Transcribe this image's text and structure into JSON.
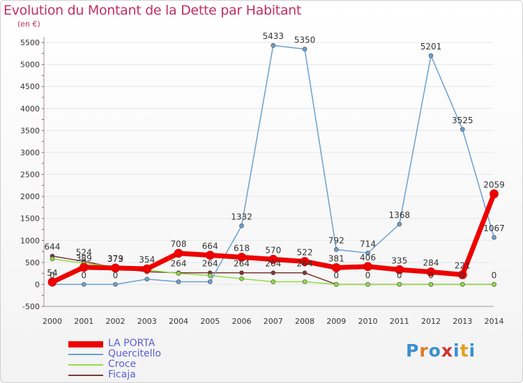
{
  "title": "Evolution du Montant de la Dette par Habitant",
  "unit": "(en €)",
  "logo": {
    "letters": [
      "P",
      "r",
      "o",
      "x",
      "i",
      "t",
      "i"
    ],
    "colors": [
      "#3a8fd0",
      "#e07a1f",
      "#3a8fd0",
      "#d03030",
      "#3a8fd0",
      "#e0a020",
      "#3a8fd0"
    ]
  },
  "chart_data": {
    "type": "line",
    "categories": [
      "2000",
      "2001",
      "2002",
      "2003",
      "2004",
      "2005",
      "2006",
      "2007",
      "2008",
      "2009",
      "2010",
      "2011",
      "2012",
      "2013",
      "2014"
    ],
    "ylim": [
      -500,
      5500
    ],
    "yticks": [
      -500,
      0,
      500,
      1000,
      1500,
      2000,
      2500,
      3000,
      3500,
      4000,
      4500,
      5000,
      5500
    ],
    "grid": true,
    "legend_placement": "bottom-left",
    "series": [
      {
        "name": "LA PORTA",
        "color": "#ee0000",
        "values": [
          54,
          389,
          373,
          354,
          708,
          664,
          618,
          570,
          522,
          381,
          406,
          335,
          284,
          221,
          2059
        ],
        "labels": [
          "54",
          "389",
          "373",
          "354",
          "708",
          "664",
          "618",
          "570",
          "522",
          "381",
          "406",
          "335",
          "284",
          "221",
          "2059"
        ]
      },
      {
        "name": "Quercitello",
        "color": "#6aa0d0",
        "values": [
          0,
          0,
          0,
          120,
          60,
          60,
          1332,
          5433,
          5350,
          792,
          714,
          1368,
          5201,
          3525,
          1067
        ],
        "labels": [
          "0",
          "0",
          "0",
          "",
          "",
          "",
          "1332",
          "5433",
          "5350",
          "792",
          "714",
          "1368",
          "5201",
          "3525",
          "1067"
        ]
      },
      {
        "name": "Croce",
        "color": "#90dd40",
        "values": [
          580,
          480,
          400,
          330,
          250,
          200,
          130,
          60,
          60,
          0,
          0,
          0,
          0,
          0,
          0
        ],
        "labels": [
          "",
          "",
          "",
          "",
          "",
          "",
          "",
          "",
          "",
          "",
          "",
          "",
          "",
          "",
          ""
        ]
      },
      {
        "name": "Ficaja",
        "color": "#7a3535",
        "values": [
          644,
          524,
          379,
          288,
          264,
          264,
          264,
          264,
          264,
          0,
          0,
          0,
          0,
          0,
          0
        ],
        "labels": [
          "644",
          "524",
          "379",
          "",
          "264",
          "264",
          "264",
          "264",
          "264",
          "0",
          "0",
          "0",
          "0",
          "0",
          "0"
        ]
      }
    ]
  }
}
